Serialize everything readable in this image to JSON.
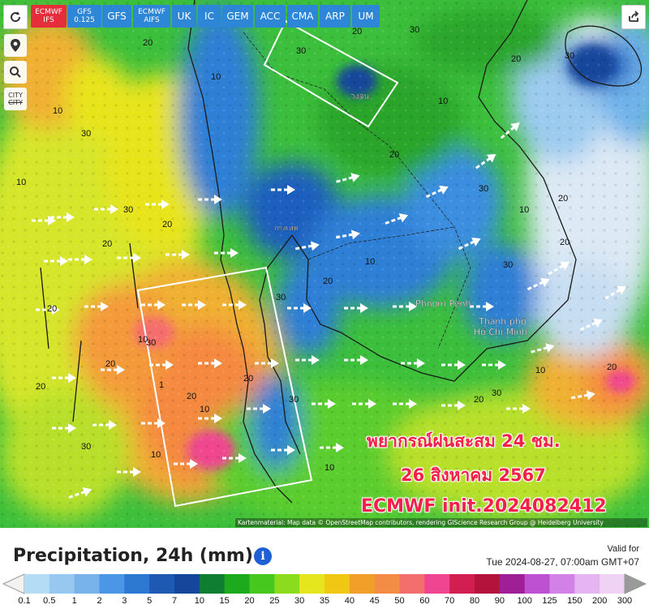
{
  "models": [
    {
      "label": "ECMWF",
      "sub": "IFS",
      "active": true
    },
    {
      "label": "GFS",
      "sub": "0.125",
      "active": false
    },
    {
      "label": "GFS",
      "sub": "",
      "active": false
    },
    {
      "label": "ECMWF",
      "sub": "AIFS",
      "active": false
    },
    {
      "label": "UK",
      "sub": "",
      "active": false
    },
    {
      "label": "IC",
      "sub": "",
      "active": false
    },
    {
      "label": "GEM",
      "sub": "",
      "active": false
    },
    {
      "label": "ACC",
      "sub": "",
      "active": false
    },
    {
      "label": "CMA",
      "sub": "",
      "active": false
    },
    {
      "label": "ARP",
      "sub": "",
      "active": false
    },
    {
      "label": "UM",
      "sub": "",
      "active": false
    }
  ],
  "map": {
    "city_toggle_label": "CITY",
    "place_labels": {
      "phnom_penh": "Phnom Penh",
      "hcm_1": "Thành phố",
      "hcm_2": "Hồ Chí Minh",
      "bangkok": "กรุงเทพ",
      "vientiane": "วงจน"
    },
    "overlay": {
      "line1": "พยากรณ์ฝนสะสม 24 ชม.",
      "line2": "26 สิงหาคม 2567",
      "line3": "ECMWF init.2024082412"
    },
    "attribution": "Kartenmaterial: Map data © OpenStreetMap contributors, rendering GIScience Research Group @ Heidelberg University",
    "contour_values": [
      "20",
      "30",
      "10",
      "20",
      "30",
      "10",
      "20",
      "30",
      "20",
      "10",
      "30",
      "20",
      "30",
      "10",
      "20",
      "30",
      "20",
      "10",
      "30",
      "20",
      "30",
      "20",
      "10",
      "20",
      "30",
      "20",
      "10",
      "1",
      "10",
      "20",
      "30",
      "20",
      "10",
      "30",
      "10",
      "20",
      "20",
      "30",
      "20",
      "10"
    ]
  },
  "legend": {
    "title": "Precipitation, 24h (mm)",
    "valid_for": "Valid for",
    "valid_time": "Tue 2024-08-27, 07:00am GMT+07",
    "ticks": [
      "0.1",
      "0.5",
      "1",
      "2",
      "3",
      "5",
      "7",
      "10",
      "15",
      "20",
      "25",
      "30",
      "35",
      "40",
      "45",
      "50",
      "60",
      "70",
      "80",
      "90",
      "100",
      "125",
      "150",
      "200",
      "300"
    ],
    "colors": [
      "#b4dcf5",
      "#96c8f0",
      "#78b4eb",
      "#4b96e6",
      "#2d78d2",
      "#1e5ab4",
      "#14469b",
      "#0f7d32",
      "#1eaa1e",
      "#46c81e",
      "#8cdc1e",
      "#e6e61e",
      "#f0c814",
      "#f0a028",
      "#f58c46",
      "#f56e6e",
      "#f04691",
      "#d21e50",
      "#b4143c",
      "#a01e96",
      "#be50d2",
      "#d282e6",
      "#e6b4f0",
      "#f0d2f5",
      "#f5e6fa"
    ]
  }
}
